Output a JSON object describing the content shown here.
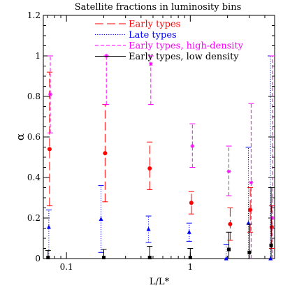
{
  "chart_data": {
    "type": "scatter",
    "title": "Satellite fractions in luminosity bins",
    "xlabel": "L/L*",
    "ylabel": "α",
    "xscale": "log",
    "xlim": [
      0.065,
      4.8
    ],
    "ylim": [
      0,
      1.2
    ],
    "xticks": [
      {
        "value": 0.1,
        "label": "0.1"
      },
      {
        "value": 1,
        "label": "1"
      }
    ],
    "yticks": [
      {
        "value": 0,
        "label": "0"
      },
      {
        "value": 0.2,
        "label": "0.2"
      },
      {
        "value": 0.4,
        "label": "0.4"
      },
      {
        "value": 0.6,
        "label": "0.6"
      },
      {
        "value": 0.8,
        "label": "0.8"
      },
      {
        "value": 1,
        "label": "1"
      },
      {
        "value": 1.2,
        "label": "1.2"
      }
    ],
    "legend_position": "top-center",
    "series": [
      {
        "name": "Early types",
        "color": "#ff0000",
        "marker": "circle",
        "linestyle": "long-dash",
        "points": [
          {
            "x": 0.073,
            "y": 0.54,
            "ylo": 0.26,
            "yhi": 0.92
          },
          {
            "x": 0.205,
            "y": 0.52,
            "ylo": 0.28,
            "yhi": 0.76
          },
          {
            "x": 0.47,
            "y": 0.445,
            "ylo": 0.34,
            "yhi": 0.575
          },
          {
            "x": 1.02,
            "y": 0.275,
            "ylo": 0.22,
            "yhi": 0.33
          },
          {
            "x": 2.1,
            "y": 0.17,
            "ylo": 0.09,
            "yhi": 0.25
          },
          {
            "x": 3.05,
            "y": 0.24,
            "ylo": 0.13,
            "yhi": 0.35
          },
          {
            "x": 4.55,
            "y": 0.155,
            "ylo": 0.05,
            "yhi": 0.26
          }
        ]
      },
      {
        "name": "Late types",
        "color": "#0000ff",
        "marker": "triangle",
        "linestyle": "dotted",
        "points": [
          {
            "x": 0.072,
            "y": 0.155,
            "ylo": 0.0,
            "yhi": 0.24
          },
          {
            "x": 0.19,
            "y": 0.195,
            "ylo": 0.03,
            "yhi": 0.36
          },
          {
            "x": 0.46,
            "y": 0.145,
            "ylo": 0.08,
            "yhi": 0.21
          },
          {
            "x": 0.98,
            "y": 0.13,
            "ylo": 0.085,
            "yhi": 0.175
          },
          {
            "x": 1.95,
            "y": 0.0,
            "ylo": 0.0,
            "yhi": 0.07
          },
          {
            "x": 2.95,
            "y": 0.175,
            "ylo": 0.0,
            "yhi": 0.55
          },
          {
            "x": 4.45,
            "y": 0.0,
            "ylo": 0.0,
            "yhi": 1.0
          }
        ]
      },
      {
        "name": "Early types, high-density",
        "color": "#ff00ff",
        "marker": "asterisk",
        "linestyle": "short-dash",
        "points": [
          {
            "x": 0.074,
            "y": 0.81,
            "ylo": 0.62,
            "yhi": 1.0
          },
          {
            "x": 0.21,
            "y": 1.0,
            "ylo": 0.76,
            "yhi": 1.0
          },
          {
            "x": 0.48,
            "y": 0.96,
            "ylo": 0.76,
            "yhi": 1.0
          },
          {
            "x": 1.04,
            "y": 0.555,
            "ylo": 0.45,
            "yhi": 0.665
          },
          {
            "x": 2.05,
            "y": 0.43,
            "ylo": 0.31,
            "yhi": 0.555
          },
          {
            "x": 3.1,
            "y": 0.375,
            "ylo": 0.0,
            "yhi": 0.765
          },
          {
            "x": 4.6,
            "y": 0.2,
            "ylo": 0.0,
            "yhi": 1.0
          }
        ]
      },
      {
        "name": "Early types, low density",
        "color": "#000000",
        "marker": "square",
        "linestyle": "solid",
        "points": [
          {
            "x": 0.071,
            "y": 0.005,
            "ylo": 0.0,
            "yhi": 0.04
          },
          {
            "x": 0.2,
            "y": 0.005,
            "ylo": 0.0,
            "yhi": 0.045
          },
          {
            "x": 0.47,
            "y": 0.005,
            "ylo": 0.0,
            "yhi": 0.06
          },
          {
            "x": 1.0,
            "y": 0.005,
            "ylo": 0.0,
            "yhi": 0.05
          },
          {
            "x": 2.05,
            "y": 0.045,
            "ylo": 0.0,
            "yhi": 0.13
          },
          {
            "x": 3.0,
            "y": 0.03,
            "ylo": 0.0,
            "yhi": 0.17
          },
          {
            "x": 4.5,
            "y": 0.065,
            "ylo": 0.0,
            "yhi": 0.35
          }
        ]
      }
    ]
  }
}
